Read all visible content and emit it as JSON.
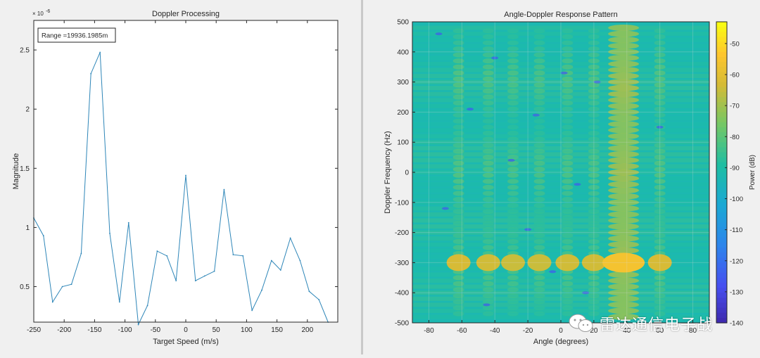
{
  "colors": {
    "line": "#2e86b8",
    "axes": "#262626",
    "grid": "#dcdcdc",
    "background": "#ffffff",
    "figure": "#f0f0f0"
  },
  "chart_data": [
    {
      "type": "line",
      "title": "Doppler Processing",
      "xlabel": "Target Speed (m/s)",
      "ylabel": "Magnitude",
      "exponent_label": "× 10",
      "exponent_power": "-6",
      "annotation": "Range =19936.1985m",
      "xlim": [
        -250,
        250
      ],
      "ylim": [
        0.2,
        2.75
      ],
      "xticks": [
        "-250",
        "-200",
        "-150",
        "-100",
        "-50",
        "0",
        "50",
        "100",
        "150",
        "200"
      ],
      "xtick_values": [
        -250,
        -200,
        -150,
        -100,
        -50,
        0,
        50,
        100,
        150,
        200
      ],
      "yticks": [
        "0.5",
        "1",
        "1.5",
        "2",
        "2.5"
      ],
      "ytick_values": [
        0.5,
        1,
        1.5,
        2,
        2.5
      ],
      "x": [
        -250,
        -234,
        -219,
        -203,
        -188,
        -172,
        -156,
        -141,
        -125,
        -109,
        -94,
        -78,
        -63,
        -47,
        -31,
        -16,
        0,
        16,
        31,
        47,
        63,
        78,
        94,
        109,
        125,
        141,
        156,
        172,
        188,
        203,
        219,
        234
      ],
      "y": [
        1.08,
        0.93,
        0.37,
        0.5,
        0.52,
        0.78,
        2.3,
        2.48,
        0.95,
        0.37,
        1.04,
        0.18,
        0.34,
        0.8,
        0.76,
        0.55,
        1.44,
        0.55,
        0.59,
        0.63,
        1.32,
        0.77,
        0.76,
        0.3,
        0.47,
        0.72,
        0.64,
        0.91,
        0.72,
        0.46,
        0.39,
        0.2
      ]
    },
    {
      "type": "heatmap",
      "title": "Angle-Doppler Response Pattern",
      "xlabel": "Angle (degrees)",
      "ylabel": "Doppler Frequency (Hz)",
      "colorbar_label": "Power (dB)",
      "xlim": [
        -90,
        90
      ],
      "ylim": [
        -500,
        500
      ],
      "clim": [
        -140,
        -43
      ],
      "xticks": [
        "-80",
        "-60",
        "-40",
        "-20",
        "0",
        "20",
        "40",
        "60",
        "80"
      ],
      "xtick_values": [
        -80,
        -60,
        -40,
        -20,
        0,
        20,
        40,
        60,
        80
      ],
      "yticks": [
        "500",
        "400",
        "300",
        "200",
        "100",
        "0",
        "-100",
        "-200",
        "-300",
        "-400",
        "-500"
      ],
      "ytick_values": [
        500,
        400,
        300,
        200,
        100,
        0,
        -100,
        -200,
        -300,
        -400,
        -500
      ],
      "cticks": [
        "-50",
        "-60",
        "-70",
        "-80",
        "-90",
        "-100",
        "-110",
        "-120",
        "-130",
        "-140"
      ],
      "ctick_values": [
        -50,
        -60,
        -70,
        -80,
        -90,
        -100,
        -110,
        -120,
        -130,
        -140
      ],
      "peak": {
        "angle": 38,
        "doppler": -300,
        "power_db": -55
      },
      "sidelobes": [
        {
          "angle": -62,
          "power_db": -62
        },
        {
          "angle": -44,
          "power_db": -63
        },
        {
          "angle": -29,
          "power_db": -64
        },
        {
          "angle": -13,
          "power_db": -64
        },
        {
          "angle": 4,
          "power_db": -63
        },
        {
          "angle": 20,
          "power_db": -63
        },
        {
          "angle": 60,
          "power_db": -62
        }
      ]
    }
  ],
  "watermark": {
    "icon": "wechat-icon",
    "text": "雷达通信电子战"
  }
}
